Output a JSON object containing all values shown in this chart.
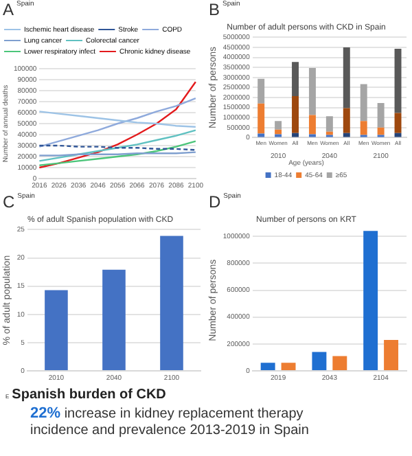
{
  "chart_data": [
    {
      "type": "line",
      "subtitle": "Spain",
      "annotations": [
        "A"
      ],
      "ylabel": "Number of annual deaths",
      "categories": [
        "2016",
        "2026",
        "2036",
        "2046",
        "2056",
        "2066",
        "2076",
        "2086",
        "2100"
      ],
      "ylim": [
        0,
        100000
      ],
      "yticks": [
        0,
        10000,
        20000,
        30000,
        40000,
        50000,
        60000,
        70000,
        80000,
        90000,
        100000
      ],
      "grid": "y",
      "legend": "top left",
      "series": [
        {
          "name": "Ischemic heart disease",
          "color": "#9dc3e6",
          "values": [
            61000,
            59000,
            57000,
            55000,
            53000,
            51000,
            50000,
            48000,
            47000
          ]
        },
        {
          "name": "Stroke",
          "color": "#2f5597",
          "line_style": "dashed",
          "values": [
            30000,
            30000,
            29000,
            29000,
            28000,
            28000,
            27000,
            27000,
            26000
          ]
        },
        {
          "name": "COPD",
          "color": "#8faadc",
          "values": [
            29000,
            34000,
            39000,
            44000,
            50000,
            55000,
            61000,
            66000,
            73000
          ]
        },
        {
          "name": "Lung cancer",
          "color": "#7f9fcf",
          "values": [
            21000,
            21000,
            22000,
            22000,
            22000,
            23000,
            23000,
            23000,
            24000
          ]
        },
        {
          "name": "Colorectal cancer",
          "color": "#5fc1c1",
          "values": [
            16000,
            19000,
            22000,
            25000,
            28000,
            31000,
            35000,
            39000,
            44000
          ]
        },
        {
          "name": "Lower respiratory infect",
          "color": "#4cc57a",
          "values": [
            12000,
            14000,
            16000,
            18000,
            20000,
            22000,
            25000,
            29000,
            34000
          ]
        },
        {
          "name": "Chronic kidney disease",
          "color": "#e31a1c",
          "values": [
            10000,
            14000,
            19000,
            24000,
            31000,
            40000,
            50000,
            63000,
            88000
          ]
        }
      ]
    },
    {
      "type": "bar",
      "stacked": true,
      "subtitle": "Spain",
      "title": "Number of adult persons with CKD in Spain",
      "annotations": [
        "B",
        "2010",
        "2040",
        "2100"
      ],
      "ylabel": "Number of persons",
      "categories": [
        "Men",
        "Women",
        "All",
        "Men",
        "Women",
        "All",
        "Men",
        "Women",
        "All"
      ],
      "ylim": [
        0,
        5000000
      ],
      "yticks": [
        0,
        500000,
        1000000,
        1500000,
        2000000,
        2500000,
        3000000,
        3500000,
        4000000,
        4500000,
        5000000
      ],
      "grid": "y",
      "legend": "bottom",
      "legend_title": "Age (years)",
      "series": [
        {
          "name": "18-44",
          "color": "#4472c4",
          "colors": [
            "#4472c4",
            "#4472c4",
            "#264478",
            "#4472c4",
            "#4472c4",
            "#264478",
            "#4472c4",
            "#4472c4",
            "#264478"
          ],
          "values": [
            200000,
            170000,
            230000,
            170000,
            130000,
            230000,
            130000,
            130000,
            230000
          ]
        },
        {
          "name": "45-64",
          "color": "#ed7d31",
          "colors": [
            "#ed7d31",
            "#ed7d31",
            "#9e480e",
            "#ed7d31",
            "#ed7d31",
            "#9e480e",
            "#ed7d31",
            "#ed7d31",
            "#9e480e"
          ],
          "values": [
            1500000,
            230000,
            1840000,
            960000,
            170000,
            1240000,
            700000,
            370000,
            1000000
          ]
        },
        {
          "name": "≥65",
          "color": "#a5a5a5",
          "colors": [
            "#a5a5a5",
            "#a5a5a5",
            "#595959",
            "#a5a5a5",
            "#a5a5a5",
            "#595959",
            "#a5a5a5",
            "#a5a5a5",
            "#595959"
          ],
          "values": [
            1230000,
            430000,
            1700000,
            2340000,
            770000,
            3030000,
            1840000,
            1230000,
            3200000
          ]
        }
      ]
    },
    {
      "type": "bar",
      "subtitle": "Spain",
      "title": "% of adult Spanish population with CKD",
      "annotations": [
        "C"
      ],
      "ylabel": "% of adult population",
      "categories": [
        "2010",
        "2040",
        "2100"
      ],
      "values": [
        14.3,
        17.9,
        23.9
      ],
      "color": "#4472c4",
      "ylim": [
        0,
        25
      ],
      "yticks": [
        0,
        5,
        10,
        15,
        20,
        25
      ],
      "grid": "y"
    },
    {
      "type": "bar",
      "subtitle": "Spain",
      "title": "Number of persons on KRT",
      "annotations": [
        "D"
      ],
      "ylabel": "Number of persons",
      "categories": [
        "2019",
        "2043",
        "2104"
      ],
      "ylim": [
        0,
        1050000
      ],
      "yticks": [
        0,
        200000,
        400000,
        600000,
        800000,
        1000000
      ],
      "grid": "y",
      "series": [
        {
          "color": "#1f6fd1",
          "values": [
            60000,
            140000,
            1040000
          ]
        },
        {
          "color": "#ed7d31",
          "values": [
            60000,
            110000,
            230000
          ]
        }
      ]
    },
    {
      "type": "other",
      "title": "Spanish burden of CKD",
      "annotations": [
        "E",
        "22%",
        "increase in kidney replacement therapy incidence and prevalence 2013-2019 in Spain"
      ]
    }
  ]
}
